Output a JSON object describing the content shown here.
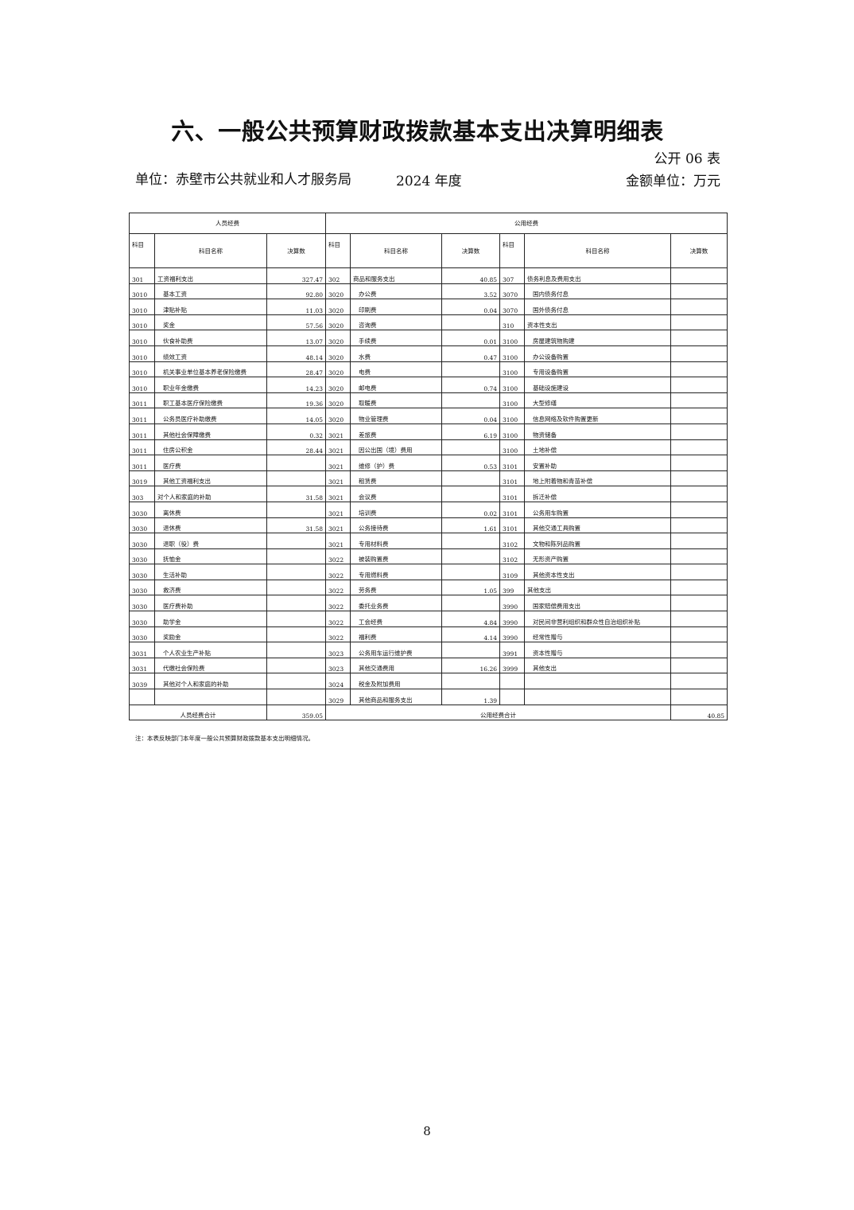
{
  "title": "六、一般公共预算财政拨款基本支出决算明细表",
  "form_no": "公开 06 表",
  "unit": "单位：赤壁市公共就业和人才服务局",
  "year": "2024 年度",
  "money_unit": "金额单位：万元",
  "table": {
    "group_personnel": "人员经费",
    "group_public": "公用经费",
    "col_code": "科目",
    "col_name": "科目名称",
    "col_amount": "决算数",
    "rows": [
      [
        [
          "301",
          "工资福利支出",
          "327.47",
          0
        ],
        [
          "302",
          "商品和服务支出",
          "40.85",
          0
        ],
        [
          "307",
          "债务利息及费用支出",
          "",
          0
        ]
      ],
      [
        [
          "3010",
          "基本工资",
          "92.80",
          1
        ],
        [
          "3020",
          "办公费",
          "3.52",
          1
        ],
        [
          "3070",
          "国内债务付息",
          "",
          1
        ]
      ],
      [
        [
          "3010",
          "津贴补贴",
          "11.03",
          1
        ],
        [
          "3020",
          "印刷费",
          "0.04",
          1
        ],
        [
          "3070",
          "国外债务付息",
          "",
          1
        ]
      ],
      [
        [
          "3010",
          "奖金",
          "57.56",
          1
        ],
        [
          "3020",
          "咨询费",
          "",
          1
        ],
        [
          "310",
          "资本性支出",
          "",
          0
        ]
      ],
      [
        [
          "3010",
          "伙食补助费",
          "13.07",
          1
        ],
        [
          "3020",
          "手续费",
          "0.01",
          1
        ],
        [
          "3100",
          "房屋建筑物购建",
          "",
          1
        ]
      ],
      [
        [
          "3010",
          "绩效工资",
          "48.14",
          1
        ],
        [
          "3020",
          "水费",
          "0.47",
          1
        ],
        [
          "3100",
          "办公设备购置",
          "",
          1
        ]
      ],
      [
        [
          "3010",
          "机关事业单位基本养老保险缴费",
          "28.47",
          1
        ],
        [
          "3020",
          "电费",
          "",
          1
        ],
        [
          "3100",
          "专用设备购置",
          "",
          1
        ]
      ],
      [
        [
          "3010",
          "职业年金缴费",
          "14.23",
          1
        ],
        [
          "3020",
          "邮电费",
          "0.74",
          1
        ],
        [
          "3100",
          "基础设施建设",
          "",
          1
        ]
      ],
      [
        [
          "3011",
          "职工基本医疗保险缴费",
          "19.36",
          1
        ],
        [
          "3020",
          "取暖费",
          "",
          1
        ],
        [
          "3100",
          "大型修缮",
          "",
          1
        ]
      ],
      [
        [
          "3011",
          "公务员医疗补助缴费",
          "14.05",
          1
        ],
        [
          "3020",
          "物业管理费",
          "0.04",
          1
        ],
        [
          "3100",
          "信息网络及软件购置更新",
          "",
          1
        ]
      ],
      [
        [
          "3011",
          "其他社会保障缴费",
          "0.32",
          1
        ],
        [
          "3021",
          "差旅费",
          "6.19",
          1
        ],
        [
          "3100",
          "物资储备",
          "",
          1
        ]
      ],
      [
        [
          "3011",
          "住房公积金",
          "28.44",
          1
        ],
        [
          "3021",
          "因公出国（境）费用",
          "",
          1
        ],
        [
          "3100",
          "土地补偿",
          "",
          1
        ]
      ],
      [
        [
          "3011",
          "医疗费",
          "",
          1
        ],
        [
          "3021",
          "维修（护）费",
          "0.53",
          1
        ],
        [
          "3101",
          "安置补助",
          "",
          1
        ]
      ],
      [
        [
          "3019",
          "其他工资福利支出",
          "",
          1
        ],
        [
          "3021",
          "租赁费",
          "",
          1
        ],
        [
          "3101",
          "地上附着物和青苗补偿",
          "",
          1
        ]
      ],
      [
        [
          "303",
          "对个人和家庭的补助",
          "31.58",
          0
        ],
        [
          "3021",
          "会议费",
          "",
          1
        ],
        [
          "3101",
          "拆迁补偿",
          "",
          1
        ]
      ],
      [
        [
          "3030",
          "离休费",
          "",
          1
        ],
        [
          "3021",
          "培训费",
          "0.02",
          1
        ],
        [
          "3101",
          "公务用车购置",
          "",
          1
        ]
      ],
      [
        [
          "3030",
          "退休费",
          "31.58",
          1
        ],
        [
          "3021",
          "公务接待费",
          "1.61",
          1
        ],
        [
          "3101",
          "其他交通工具购置",
          "",
          1
        ]
      ],
      [
        [
          "3030",
          "退职（役）费",
          "",
          1
        ],
        [
          "3021",
          "专用材料费",
          "",
          1
        ],
        [
          "3102",
          "文物和陈列品购置",
          "",
          1
        ]
      ],
      [
        [
          "3030",
          "抚恤金",
          "",
          1
        ],
        [
          "3022",
          "被装购置费",
          "",
          1
        ],
        [
          "3102",
          "无形资产购置",
          "",
          1
        ]
      ],
      [
        [
          "3030",
          "生活补助",
          "",
          1
        ],
        [
          "3022",
          "专用燃料费",
          "",
          1
        ],
        [
          "3109",
          "其他资本性支出",
          "",
          1
        ]
      ],
      [
        [
          "3030",
          "救济费",
          "",
          1
        ],
        [
          "3022",
          "劳务费",
          "1.05",
          1
        ],
        [
          "399",
          "其他支出",
          "",
          0
        ]
      ],
      [
        [
          "3030",
          "医疗费补助",
          "",
          1
        ],
        [
          "3022",
          "委托业务费",
          "",
          1
        ],
        [
          "3990",
          "国家赔偿费用支出",
          "",
          1
        ]
      ],
      [
        [
          "3030",
          "助学金",
          "",
          1
        ],
        [
          "3022",
          "工会经费",
          "4.84",
          1
        ],
        [
          "3990",
          "对民间非营利组织和群众性自治组织补贴",
          "",
          1
        ]
      ],
      [
        [
          "3030",
          "奖励金",
          "",
          1
        ],
        [
          "3022",
          "福利费",
          "4.14",
          1
        ],
        [
          "3990",
          "经常性赠与",
          "",
          1
        ]
      ],
      [
        [
          "3031",
          "个人农业生产补贴",
          "",
          1
        ],
        [
          "3023",
          "公务用车运行维护费",
          "",
          1
        ],
        [
          "3991",
          "资本性赠与",
          "",
          1
        ]
      ],
      [
        [
          "3031",
          "代缴社会保险费",
          "",
          1
        ],
        [
          "3023",
          "其他交通费用",
          "16.26",
          1
        ],
        [
          "3999",
          "其他支出",
          "",
          1
        ]
      ],
      [
        [
          "3039",
          "其他对个人和家庭的补助",
          "",
          1
        ],
        [
          "3024",
          "税金及附加费用",
          "",
          1
        ],
        [
          "",
          "",
          "",
          1
        ]
      ],
      [
        [
          "",
          "",
          "",
          1
        ],
        [
          "3029",
          "其他商品和服务支出",
          "1.39",
          1
        ],
        [
          "",
          "",
          "",
          1
        ]
      ]
    ],
    "total_personnel_label": "人员经费合计",
    "total_personnel_value": "359.05",
    "total_public_label": "公用经费合计",
    "total_public_value": "40.85"
  },
  "note": "注：本表反映部门本年度一般公共预算财政拨款基本支出明细情况。",
  "page_number": "8"
}
